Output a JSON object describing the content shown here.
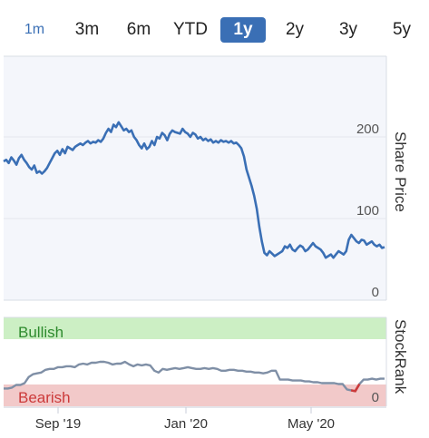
{
  "range_tabs": {
    "items": [
      "1m",
      "3m",
      "6m",
      "YTD",
      "1y",
      "2y",
      "3y",
      "5y"
    ],
    "active": "1y"
  },
  "colors": {
    "line": "#3a6fb5",
    "plot_bg": "#f4f6fb",
    "bullish_bg": "#ccefc4",
    "bullish_text": "#2e8b2e",
    "bearish_bg": "#f2c9c9",
    "bearish_text": "#cc3a3a",
    "stockrank_line": "#7f8fa6"
  },
  "chart_data": [
    {
      "type": "line",
      "ylabel": "Share Price",
      "ylim": [
        0,
        270
      ],
      "yticks": [
        0,
        100,
        200
      ],
      "xticks": [
        "Sep '19",
        "Jan '20",
        "May '20"
      ],
      "grid": true,
      "series": [
        {
          "values": [
            170,
            172,
            168,
            175,
            171,
            166,
            174,
            178,
            172,
            168,
            163,
            160,
            165,
            156,
            158,
            155,
            158,
            162,
            168,
            174,
            180,
            183,
            178,
            185,
            180,
            188,
            186,
            184,
            188,
            190,
            192,
            190,
            193,
            195,
            192,
            194,
            193,
            196,
            194,
            198,
            205,
            210,
            206,
            215,
            212,
            218,
            213,
            208,
            210,
            206,
            208,
            200,
            196,
            190,
            186,
            192,
            185,
            188,
            195,
            190,
            200,
            198,
            205,
            202,
            196,
            204,
            208,
            206,
            205,
            204,
            210,
            206,
            204,
            200,
            205,
            203,
            198,
            200,
            196,
            198,
            195,
            197,
            193,
            195,
            193,
            196,
            194,
            195,
            193,
            195,
            192,
            193,
            190,
            186,
            176,
            160,
            150,
            140,
            128,
            112,
            90,
            72,
            58,
            55,
            60,
            57,
            54,
            56,
            58,
            60,
            66,
            64,
            68,
            62,
            60,
            64,
            67,
            65,
            60,
            62,
            66,
            70,
            66,
            64,
            62,
            58,
            52,
            54,
            56,
            52,
            56,
            60,
            58,
            56,
            60,
            74,
            80,
            76,
            72,
            70,
            74,
            73,
            68,
            70,
            72,
            68,
            66,
            68,
            64,
            65
          ]
        }
      ]
    },
    {
      "type": "line",
      "ylabel": "StockRank",
      "zones": [
        "Bullish",
        "Bearish"
      ],
      "yticks": [
        0
      ],
      "ylim": [
        0,
        100
      ],
      "series": [
        {
          "values": [
            20,
            20,
            21,
            24,
            24,
            26,
            33,
            36,
            37,
            38,
            41,
            42,
            42,
            44,
            44,
            45,
            45,
            44,
            47,
            48,
            47,
            49,
            49,
            50,
            50,
            49,
            47,
            48,
            48,
            50,
            47,
            45,
            47,
            46,
            47,
            46,
            40,
            38,
            42,
            41,
            42,
            43,
            42,
            43,
            44,
            43,
            42,
            42,
            43,
            42,
            43,
            42,
            40,
            40,
            41,
            41,
            40,
            40,
            39,
            39,
            38,
            38,
            37,
            38,
            40,
            40,
            30,
            30,
            30,
            29,
            29,
            29,
            28,
            28,
            27,
            27,
            26,
            26,
            26,
            26,
            25,
            25,
            19,
            18,
            17,
            25,
            30,
            30,
            31,
            30,
            31,
            31
          ]
        }
      ]
    }
  ]
}
